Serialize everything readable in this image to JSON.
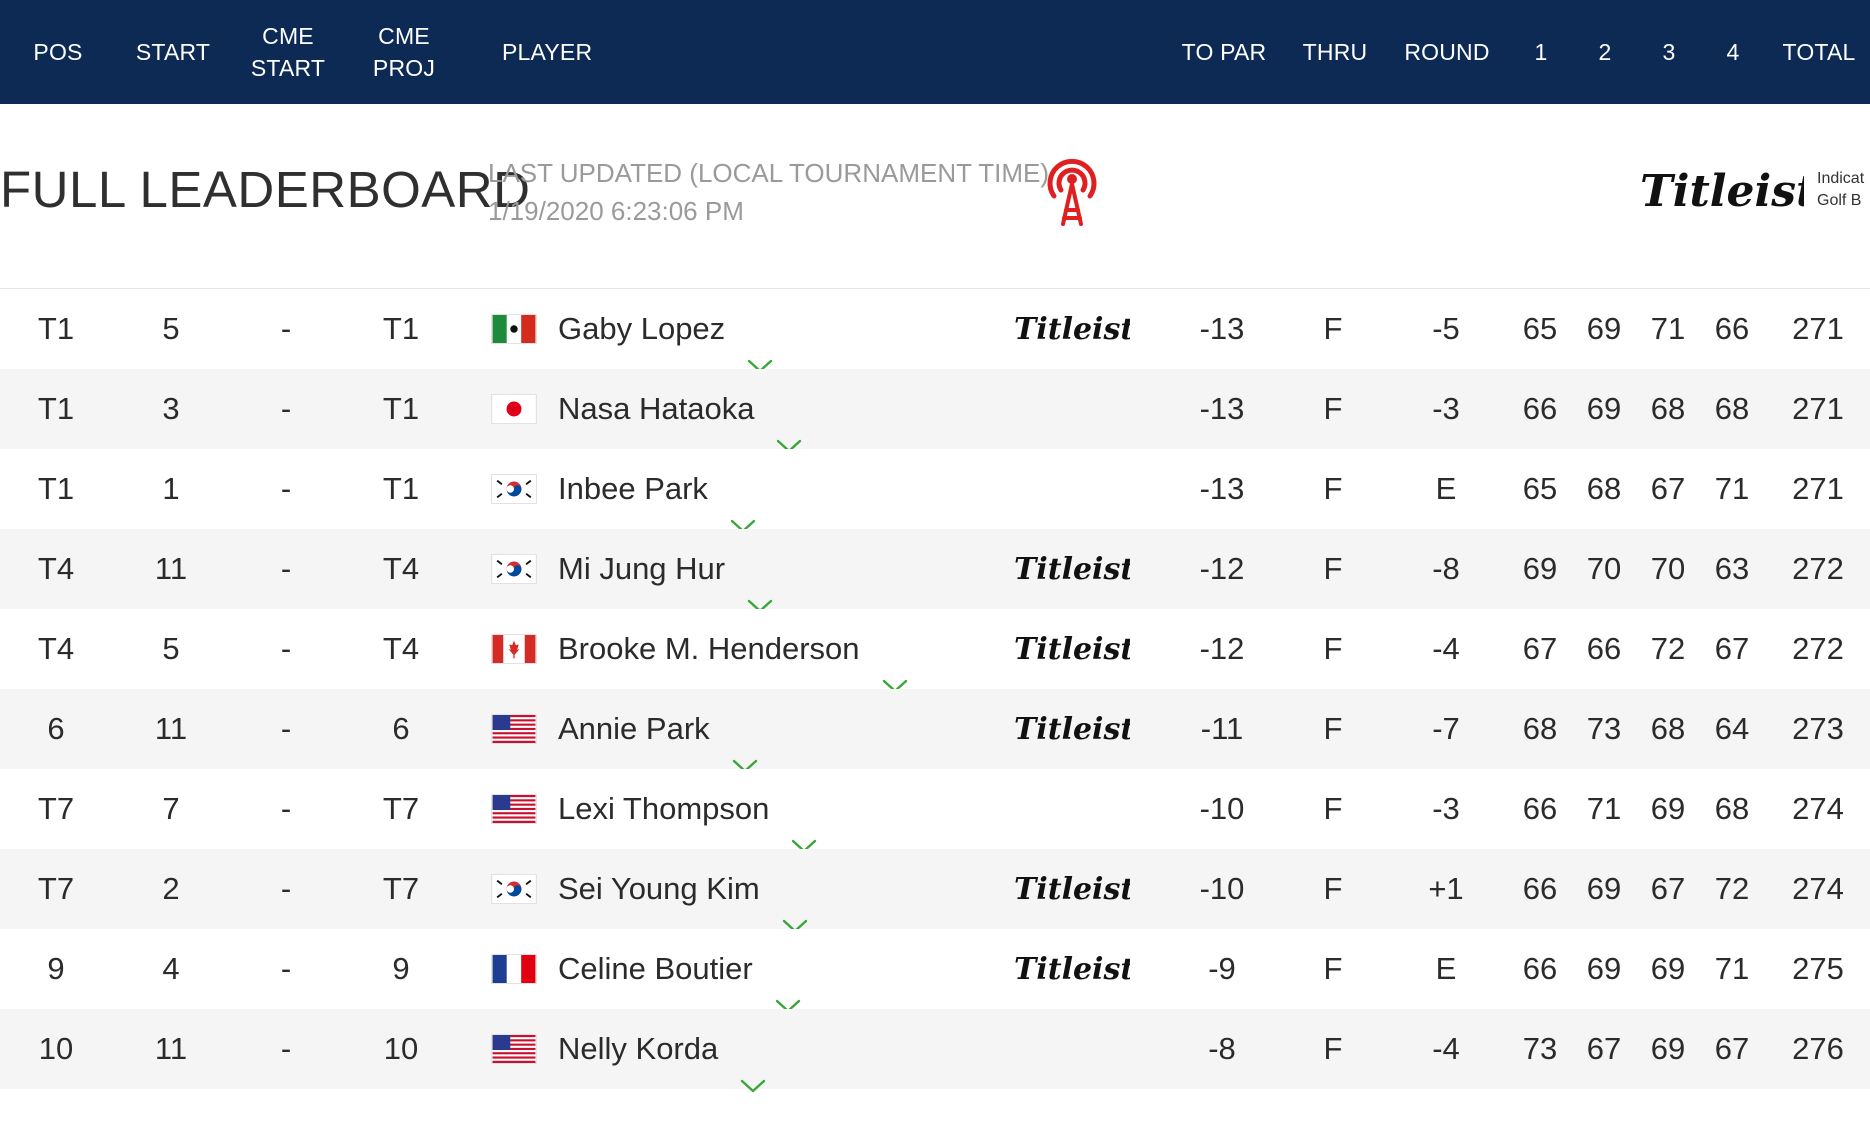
{
  "header": {
    "pos": "POS",
    "start": "START",
    "cme_start": "CME\nSTART",
    "cme_proj": "CME\nPROJ",
    "player": "PLAYER",
    "to_par": "TO PAR",
    "thru": "THRU",
    "round": "ROUND",
    "r1": "1",
    "r2": "2",
    "r3": "3",
    "r4": "4",
    "total": "TOTAL",
    "background_color": "#0d2a55"
  },
  "leaderboard": {
    "title": "FULL LEADERBOARD",
    "updated_label": "LAST UPDATED (LOCAL TOURNAMENT TIME)",
    "updated_value": "1/19/2020 6:23:06 PM",
    "live_icon": "live-broadcast-icon",
    "sponsor_name": "Titleist",
    "sponsor_note": "Indicat\nGolf B"
  },
  "players": [
    {
      "pos": "T1",
      "start": "5",
      "cme_start": "-",
      "cme_proj": "T1",
      "flag": "mexico",
      "name": "Gaby Lopez",
      "titleist": true,
      "to_par": "-13",
      "thru": "F",
      "round": "-5",
      "r1": "65",
      "r2": "69",
      "r3": "71",
      "r4": "66",
      "total": "271"
    },
    {
      "pos": "T1",
      "start": "3",
      "cme_start": "-",
      "cme_proj": "T1",
      "flag": "japan",
      "name": "Nasa Hataoka",
      "titleist": false,
      "to_par": "-13",
      "thru": "F",
      "round": "-3",
      "r1": "66",
      "r2": "69",
      "r3": "68",
      "r4": "68",
      "total": "271"
    },
    {
      "pos": "T1",
      "start": "1",
      "cme_start": "-",
      "cme_proj": "T1",
      "flag": "korea",
      "name": "Inbee Park",
      "titleist": false,
      "to_par": "-13",
      "thru": "F",
      "round": "E",
      "r1": "65",
      "r2": "68",
      "r3": "67",
      "r4": "71",
      "total": "271"
    },
    {
      "pos": "T4",
      "start": "11",
      "cme_start": "-",
      "cme_proj": "T4",
      "flag": "korea",
      "name": "Mi Jung Hur",
      "titleist": true,
      "to_par": "-12",
      "thru": "F",
      "round": "-8",
      "r1": "69",
      "r2": "70",
      "r3": "70",
      "r4": "63",
      "total": "272"
    },
    {
      "pos": "T4",
      "start": "5",
      "cme_start": "-",
      "cme_proj": "T4",
      "flag": "canada",
      "name": "Brooke M. Henderson",
      "titleist": true,
      "to_par": "-12",
      "thru": "F",
      "round": "-4",
      "r1": "67",
      "r2": "66",
      "r3": "72",
      "r4": "67",
      "total": "272"
    },
    {
      "pos": "6",
      "start": "11",
      "cme_start": "-",
      "cme_proj": "6",
      "flag": "usa",
      "name": "Annie Park",
      "titleist": true,
      "to_par": "-11",
      "thru": "F",
      "round": "-7",
      "r1": "68",
      "r2": "73",
      "r3": "68",
      "r4": "64",
      "total": "273"
    },
    {
      "pos": "T7",
      "start": "7",
      "cme_start": "-",
      "cme_proj": "T7",
      "flag": "usa",
      "name": "Lexi Thompson",
      "titleist": false,
      "to_par": "-10",
      "thru": "F",
      "round": "-3",
      "r1": "66",
      "r2": "71",
      "r3": "69",
      "r4": "68",
      "total": "274"
    },
    {
      "pos": "T7",
      "start": "2",
      "cme_start": "-",
      "cme_proj": "T7",
      "flag": "korea",
      "name": "Sei Young Kim",
      "titleist": true,
      "to_par": "-10",
      "thru": "F",
      "round": "+1",
      "r1": "66",
      "r2": "69",
      "r3": "67",
      "r4": "72",
      "total": "274"
    },
    {
      "pos": "9",
      "start": "4",
      "cme_start": "-",
      "cme_proj": "9",
      "flag": "france",
      "name": "Celine Boutier",
      "titleist": true,
      "to_par": "-9",
      "thru": "F",
      "round": "E",
      "r1": "66",
      "r2": "69",
      "r3": "69",
      "r4": "71",
      "total": "275"
    },
    {
      "pos": "10",
      "start": "11",
      "cme_start": "-",
      "cme_proj": "10",
      "flag": "usa",
      "name": "Nelly Korda",
      "titleist": false,
      "to_par": "-8",
      "thru": "F",
      "round": "-4",
      "r1": "73",
      "r2": "67",
      "r3": "69",
      "r4": "67",
      "total": "276"
    }
  ]
}
